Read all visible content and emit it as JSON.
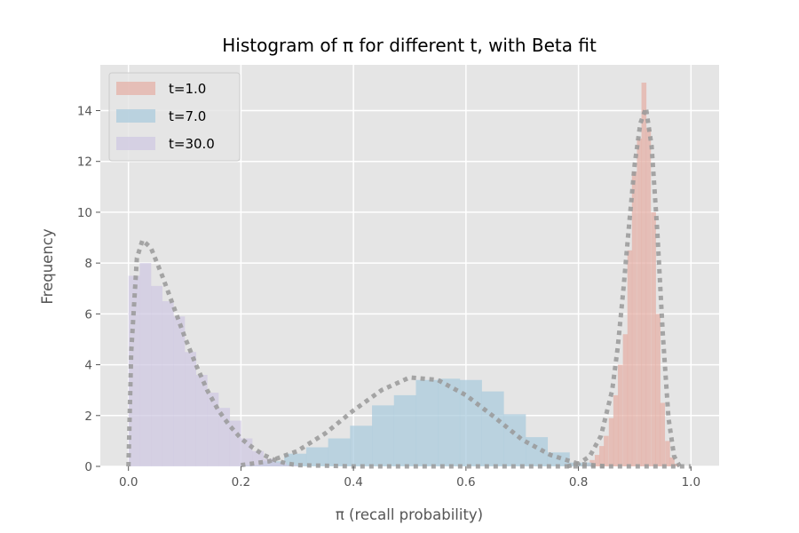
{
  "chart_data": {
    "type": "bar",
    "title": "Histogram of π for different t, with Beta fit",
    "xlabel": "π (recall probability)",
    "ylabel": "Frequency",
    "xlim": [
      -0.05,
      1.05
    ],
    "ylim": [
      0,
      15.8
    ],
    "x_ticks": [
      "0.0",
      "0.2",
      "0.4",
      "0.6",
      "0.8",
      "1.0"
    ],
    "y_ticks": [
      "0",
      "2",
      "4",
      "6",
      "8",
      "10",
      "12",
      "14"
    ],
    "grid": true,
    "legend_placement": "upper left",
    "fit_line": {
      "style": "dotted",
      "color": "#999999"
    },
    "series": [
      {
        "name": "t=1.0",
        "color": "#e5aea5",
        "bin_width": 0.0083,
        "bins": [
          [
            0.812,
            0.1
          ],
          [
            0.82,
            0.25
          ],
          [
            0.829,
            0.45
          ],
          [
            0.837,
            0.8
          ],
          [
            0.845,
            1.2
          ],
          [
            0.854,
            1.9
          ],
          [
            0.862,
            2.8
          ],
          [
            0.87,
            4.0
          ],
          [
            0.879,
            5.2
          ],
          [
            0.887,
            8.5
          ],
          [
            0.895,
            11.6
          ],
          [
            0.904,
            12.9
          ],
          [
            0.912,
            15.1
          ],
          [
            0.92,
            13.3
          ],
          [
            0.929,
            10.0
          ],
          [
            0.937,
            6.0
          ],
          [
            0.945,
            2.5
          ],
          [
            0.954,
            1.0
          ],
          [
            0.962,
            0.35
          ],
          [
            0.97,
            0.1
          ]
        ],
        "fit": [
          [
            0.78,
            0.0
          ],
          [
            0.8,
            0.1
          ],
          [
            0.82,
            0.4
          ],
          [
            0.84,
            1.2
          ],
          [
            0.86,
            3.0
          ],
          [
            0.87,
            4.7
          ],
          [
            0.88,
            7.0
          ],
          [
            0.89,
            9.5
          ],
          [
            0.9,
            11.9
          ],
          [
            0.91,
            13.5
          ],
          [
            0.92,
            14.1
          ],
          [
            0.93,
            12.6
          ],
          [
            0.94,
            9.3
          ],
          [
            0.95,
            5.2
          ],
          [
            0.96,
            1.9
          ],
          [
            0.97,
            0.4
          ],
          [
            0.98,
            0.0
          ]
        ]
      },
      {
        "name": "t=7.0",
        "color": "#a9cbdc",
        "bin_width": 0.039,
        "bins": [
          [
            0.199,
            0.05
          ],
          [
            0.238,
            0.2
          ],
          [
            0.277,
            0.5
          ],
          [
            0.316,
            0.75
          ],
          [
            0.355,
            1.1
          ],
          [
            0.394,
            1.6
          ],
          [
            0.433,
            2.4
          ],
          [
            0.472,
            2.8
          ],
          [
            0.511,
            3.4
          ],
          [
            0.55,
            3.45
          ],
          [
            0.589,
            3.4
          ],
          [
            0.628,
            2.95
          ],
          [
            0.667,
            2.05
          ],
          [
            0.706,
            1.15
          ],
          [
            0.745,
            0.55
          ],
          [
            0.784,
            0.15
          ]
        ],
        "fit": [
          [
            0.2,
            0.05
          ],
          [
            0.25,
            0.2
          ],
          [
            0.3,
            0.6
          ],
          [
            0.35,
            1.3
          ],
          [
            0.4,
            2.2
          ],
          [
            0.45,
            3.0
          ],
          [
            0.5,
            3.5
          ],
          [
            0.55,
            3.4
          ],
          [
            0.6,
            2.8
          ],
          [
            0.65,
            1.95
          ],
          [
            0.7,
            1.05
          ],
          [
            0.75,
            0.45
          ],
          [
            0.8,
            0.1
          ],
          [
            0.85,
            0.0
          ]
        ]
      },
      {
        "name": "t=30.0",
        "color": "#cfc7e2",
        "bin_width": 0.02,
        "bins": [
          [
            0.0,
            7.5
          ],
          [
            0.02,
            8.0
          ],
          [
            0.04,
            7.1
          ],
          [
            0.06,
            6.5
          ],
          [
            0.08,
            5.9
          ],
          [
            0.1,
            4.5
          ],
          [
            0.12,
            3.6
          ],
          [
            0.14,
            2.9
          ],
          [
            0.16,
            2.3
          ],
          [
            0.18,
            1.8
          ],
          [
            0.2,
            1.1
          ],
          [
            0.22,
            0.6
          ],
          [
            0.24,
            0.3
          ],
          [
            0.26,
            0.15
          ],
          [
            0.28,
            0.05
          ]
        ],
        "fit": [
          [
            0.0,
            0.0
          ],
          [
            0.005,
            4.5
          ],
          [
            0.015,
            8.2
          ],
          [
            0.025,
            8.9
          ],
          [
            0.04,
            8.6
          ],
          [
            0.06,
            7.5
          ],
          [
            0.08,
            6.3
          ],
          [
            0.1,
            5.1
          ],
          [
            0.12,
            4.0
          ],
          [
            0.14,
            3.0
          ],
          [
            0.16,
            2.2
          ],
          [
            0.18,
            1.6
          ],
          [
            0.2,
            1.1
          ],
          [
            0.22,
            0.75
          ],
          [
            0.24,
            0.45
          ],
          [
            0.26,
            0.25
          ],
          [
            0.28,
            0.12
          ],
          [
            0.3,
            0.05
          ],
          [
            0.4,
            0.0
          ],
          [
            1.0,
            0.0
          ]
        ]
      }
    ]
  }
}
